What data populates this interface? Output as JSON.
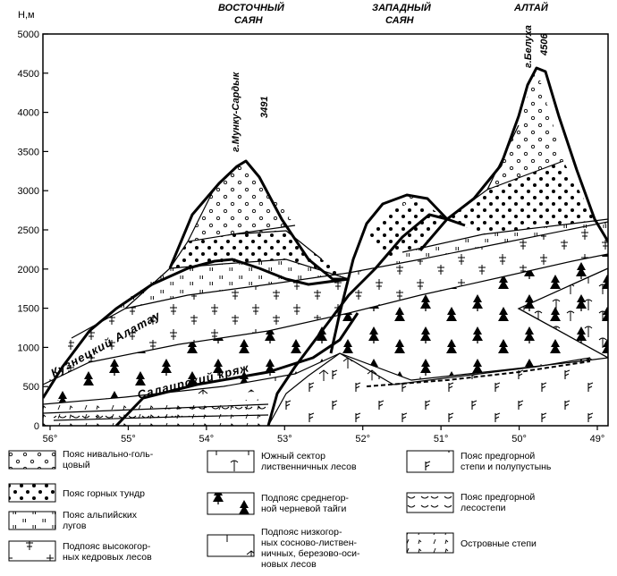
{
  "y_axis": {
    "unit_label": "Н,м",
    "ticks": [
      "5000",
      "4500",
      "4000",
      "3500",
      "3000",
      "2500",
      "2000",
      "1500",
      "1000",
      "500",
      "0"
    ]
  },
  "x_axis": {
    "ticks": [
      "56°",
      "55°",
      "54°",
      "53°",
      "52°",
      "51°",
      "50°",
      "49°"
    ]
  },
  "ranges": {
    "east_sayan": [
      "ВОСТОЧНЫЙ",
      "САЯН"
    ],
    "west_sayan": [
      "ЗАПАДНЫЙ",
      "САЯН"
    ],
    "altai": [
      "АЛТАЙ"
    ]
  },
  "peaks": {
    "munku_name": "г.Мунку-Сардык",
    "munku_height": "3491",
    "belukha_name": "г.Белуха",
    "belukha_height": "4506"
  },
  "ridges": {
    "kuznetsk": "Кузнецкий Алатау",
    "salair": "Салаирский кряж"
  },
  "legend": [
    {
      "id": "nival",
      "lines": [
        "Пояс нивально-голь-",
        "цовый"
      ]
    },
    {
      "id": "tundra",
      "lines": [
        "Пояс горных тундр"
      ]
    },
    {
      "id": "alpine",
      "lines": [
        "Пояс альпийских",
        "лугов"
      ]
    },
    {
      "id": "cedar",
      "lines": [
        "Подпояс высокогор-",
        "ных кедровых лесов"
      ]
    },
    {
      "id": "larch",
      "lines": [
        "Южный сектор",
        "лиственничных лесов"
      ]
    },
    {
      "id": "taiga",
      "lines": [
        "Подпояс среднегор-",
        "ной черневой тайги"
      ]
    },
    {
      "id": "lowforest",
      "lines": [
        "Подпояс низкогор-",
        "ных сосново-листвен-",
        "ничных, березово-оси-",
        "новых лесов"
      ]
    },
    {
      "id": "steppe",
      "lines": [
        "Пояс предгорной",
        "степи и полупустынь"
      ]
    },
    {
      "id": "forest_steppe",
      "lines": [
        "Пояс предгорной",
        "лесостепи"
      ]
    },
    {
      "id": "island_steppe",
      "lines": [
        "Островные степи"
      ]
    }
  ]
}
